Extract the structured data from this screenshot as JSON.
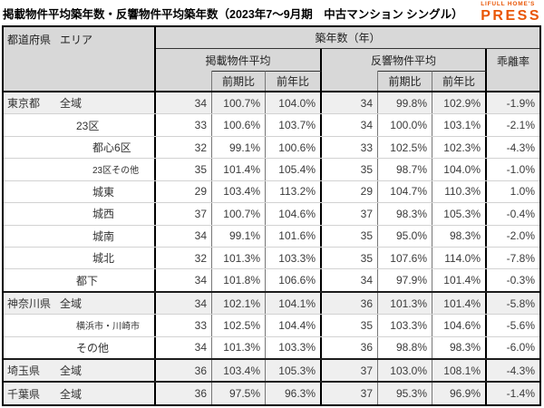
{
  "title": "掲載物件平均築年数・反響物件平均築年数（2023年7～9月期　中古マンション シングル）",
  "logo": {
    "brand": "LIFULL HOME'S",
    "name": "PRESS",
    "color": "#e95504"
  },
  "colors": {
    "logo_orange": "#e95504",
    "header_bg": "#d8d8d8",
    "shaded_row_bg": "#efefef",
    "border_dark": "#000000",
    "border_light": "#d2d2d2",
    "text": "#3a3a3a"
  },
  "table": {
    "header": {
      "col_pref": "都道府県",
      "col_area": "エリア",
      "age_group": "築年数（年）",
      "listed_group": "掲載物件平均",
      "response_group": "反響物件平均",
      "divergence": "乖離率",
      "prev_period": "前期比",
      "prev_year": "前年比"
    },
    "rows": [
      {
        "pref": "東京都",
        "area": "全域",
        "indent": 1,
        "small": false,
        "shaded": true,
        "groupStart": true,
        "values": [
          "34",
          "100.7%",
          "104.0%",
          "34",
          "99.8%",
          "102.9%",
          "-1.9%"
        ]
      },
      {
        "pref": "",
        "area": "23区",
        "indent": 2,
        "small": false,
        "shaded": false,
        "groupStart": false,
        "values": [
          "33",
          "100.6%",
          "103.7%",
          "34",
          "100.0%",
          "103.1%",
          "-2.1%"
        ]
      },
      {
        "pref": "",
        "area": "都心6区",
        "indent": 3,
        "small": false,
        "shaded": false,
        "groupStart": false,
        "values": [
          "32",
          "99.1%",
          "100.6%",
          "33",
          "102.5%",
          "102.3%",
          "-4.3%"
        ]
      },
      {
        "pref": "",
        "area": "23区その他",
        "indent": 3,
        "small": true,
        "shaded": false,
        "groupStart": false,
        "values": [
          "35",
          "101.4%",
          "105.4%",
          "35",
          "98.7%",
          "104.0%",
          "-1.0%"
        ]
      },
      {
        "pref": "",
        "area": "城東",
        "indent": 3,
        "small": false,
        "shaded": false,
        "groupStart": false,
        "values": [
          "29",
          "103.4%",
          "113.2%",
          "29",
          "104.7%",
          "110.3%",
          "1.0%"
        ]
      },
      {
        "pref": "",
        "area": "城西",
        "indent": 3,
        "small": false,
        "shaded": false,
        "groupStart": false,
        "values": [
          "37",
          "100.7%",
          "104.6%",
          "37",
          "98.3%",
          "105.3%",
          "-0.4%"
        ]
      },
      {
        "pref": "",
        "area": "城南",
        "indent": 3,
        "small": false,
        "shaded": false,
        "groupStart": false,
        "values": [
          "34",
          "99.1%",
          "101.6%",
          "35",
          "95.0%",
          "98.3%",
          "-2.0%"
        ]
      },
      {
        "pref": "",
        "area": "城北",
        "indent": 3,
        "small": false,
        "shaded": false,
        "groupStart": false,
        "values": [
          "32",
          "101.3%",
          "103.3%",
          "35",
          "107.6%",
          "114.0%",
          "-7.8%"
        ]
      },
      {
        "pref": "",
        "area": "都下",
        "indent": 2,
        "small": false,
        "shaded": false,
        "groupStart": false,
        "values": [
          "34",
          "101.8%",
          "106.6%",
          "34",
          "97.9%",
          "101.4%",
          "-0.3%"
        ]
      },
      {
        "pref": "神奈川県",
        "area": "全域",
        "indent": 1,
        "small": false,
        "shaded": true,
        "groupStart": true,
        "values": [
          "34",
          "102.1%",
          "104.1%",
          "36",
          "101.3%",
          "101.4%",
          "-5.8%"
        ]
      },
      {
        "pref": "",
        "area": "横浜市・川崎市",
        "indent": 2,
        "small": true,
        "shaded": false,
        "groupStart": false,
        "values": [
          "33",
          "102.5%",
          "104.4%",
          "35",
          "103.3%",
          "104.6%",
          "-5.6%"
        ]
      },
      {
        "pref": "",
        "area": "その他",
        "indent": 2,
        "small": false,
        "shaded": false,
        "groupStart": false,
        "values": [
          "34",
          "101.3%",
          "103.3%",
          "36",
          "98.8%",
          "98.3%",
          "-6.0%"
        ]
      },
      {
        "pref": "埼玉県",
        "area": "全域",
        "indent": 1,
        "small": false,
        "shaded": true,
        "groupStart": true,
        "values": [
          "36",
          "103.4%",
          "105.3%",
          "37",
          "103.0%",
          "108.1%",
          "-4.3%"
        ]
      },
      {
        "pref": "千葉県",
        "area": "全域",
        "indent": 1,
        "small": false,
        "shaded": true,
        "groupStart": true,
        "values": [
          "36",
          "97.5%",
          "96.3%",
          "37",
          "95.3%",
          "96.9%",
          "-1.4%"
        ]
      }
    ]
  }
}
